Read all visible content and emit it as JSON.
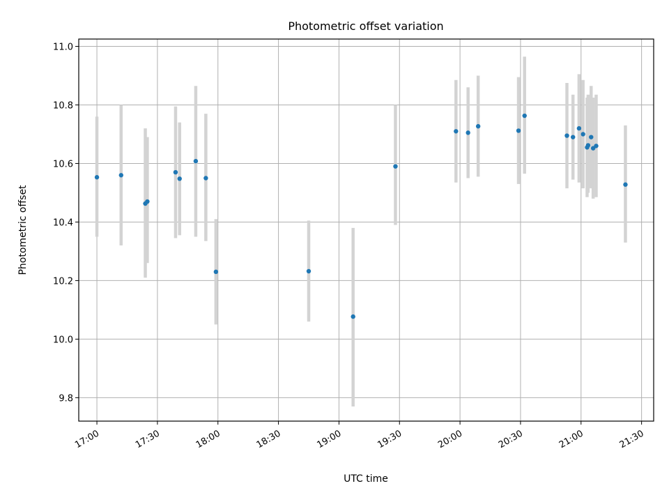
{
  "chart_data": {
    "type": "scatter",
    "title": "Photometric offset variation",
    "xlabel": "UTC time",
    "ylabel": "Photometric offset",
    "x_tick_labels": [
      "17:00",
      "17:30",
      "18:00",
      "18:30",
      "19:00",
      "19:30",
      "20:00",
      "20:30",
      "21:00",
      "21:30"
    ],
    "y_tick_labels": [
      "9.8",
      "10.0",
      "10.2",
      "10.4",
      "10.6",
      "10.8",
      "11.0"
    ],
    "xlim": [
      "16:51",
      "21:36"
    ],
    "ylim": [
      9.72,
      11.025
    ],
    "grid": true,
    "error_bar_color": "#d3d3d3",
    "point_color": "#1f77b4",
    "points": [
      {
        "x": "17:00",
        "y": 10.553,
        "lo": 10.35,
        "hi": 10.76
      },
      {
        "x": "17:12",
        "y": 10.56,
        "lo": 10.32,
        "hi": 10.8
      },
      {
        "x": "17:24",
        "y": 10.463,
        "lo": 10.21,
        "hi": 10.72
      },
      {
        "x": "17:25",
        "y": 10.47,
        "lo": 10.26,
        "hi": 10.69
      },
      {
        "x": "17:39",
        "y": 10.57,
        "lo": 10.345,
        "hi": 10.795
      },
      {
        "x": "17:41",
        "y": 10.548,
        "lo": 10.355,
        "hi": 10.74
      },
      {
        "x": "17:49",
        "y": 10.608,
        "lo": 10.35,
        "hi": 10.865
      },
      {
        "x": "17:54",
        "y": 10.55,
        "lo": 10.335,
        "hi": 10.77
      },
      {
        "x": "17:59",
        "y": 10.23,
        "lo": 10.05,
        "hi": 10.41
      },
      {
        "x": "18:45",
        "y": 10.232,
        "lo": 10.06,
        "hi": 10.405
      },
      {
        "x": "19:07",
        "y": 10.077,
        "lo": 9.77,
        "hi": 10.38
      },
      {
        "x": "19:28",
        "y": 10.59,
        "lo": 10.39,
        "hi": 10.8
      },
      {
        "x": "19:58",
        "y": 10.71,
        "lo": 10.535,
        "hi": 10.885
      },
      {
        "x": "20:04",
        "y": 10.705,
        "lo": 10.55,
        "hi": 10.86
      },
      {
        "x": "20:09",
        "y": 10.727,
        "lo": 10.555,
        "hi": 10.9
      },
      {
        "x": "20:29",
        "y": 10.712,
        "lo": 10.53,
        "hi": 10.895
      },
      {
        "x": "20:32",
        "y": 10.763,
        "lo": 10.565,
        "hi": 10.965
      },
      {
        "x": "20:53",
        "y": 10.695,
        "lo": 10.515,
        "hi": 10.875
      },
      {
        "x": "20:56",
        "y": 10.69,
        "lo": 10.545,
        "hi": 10.835
      },
      {
        "x": "20:59",
        "y": 10.72,
        "lo": 10.535,
        "hi": 10.905
      },
      {
        "x": "21:01",
        "y": 10.7,
        "lo": 10.515,
        "hi": 10.885
      },
      {
        "x": "21:03",
        "y": 10.655,
        "lo": 10.485,
        "hi": 10.825
      },
      {
        "x": "21:03:30",
        "y": 10.662,
        "lo": 10.5,
        "hi": 10.835
      },
      {
        "x": "21:05",
        "y": 10.69,
        "lo": 10.515,
        "hi": 10.865
      },
      {
        "x": "21:06",
        "y": 10.652,
        "lo": 10.48,
        "hi": 10.825
      },
      {
        "x": "21:07:30",
        "y": 10.66,
        "lo": 10.485,
        "hi": 10.835
      },
      {
        "x": "21:22",
        "y": 10.528,
        "lo": 10.33,
        "hi": 10.73
      }
    ]
  }
}
